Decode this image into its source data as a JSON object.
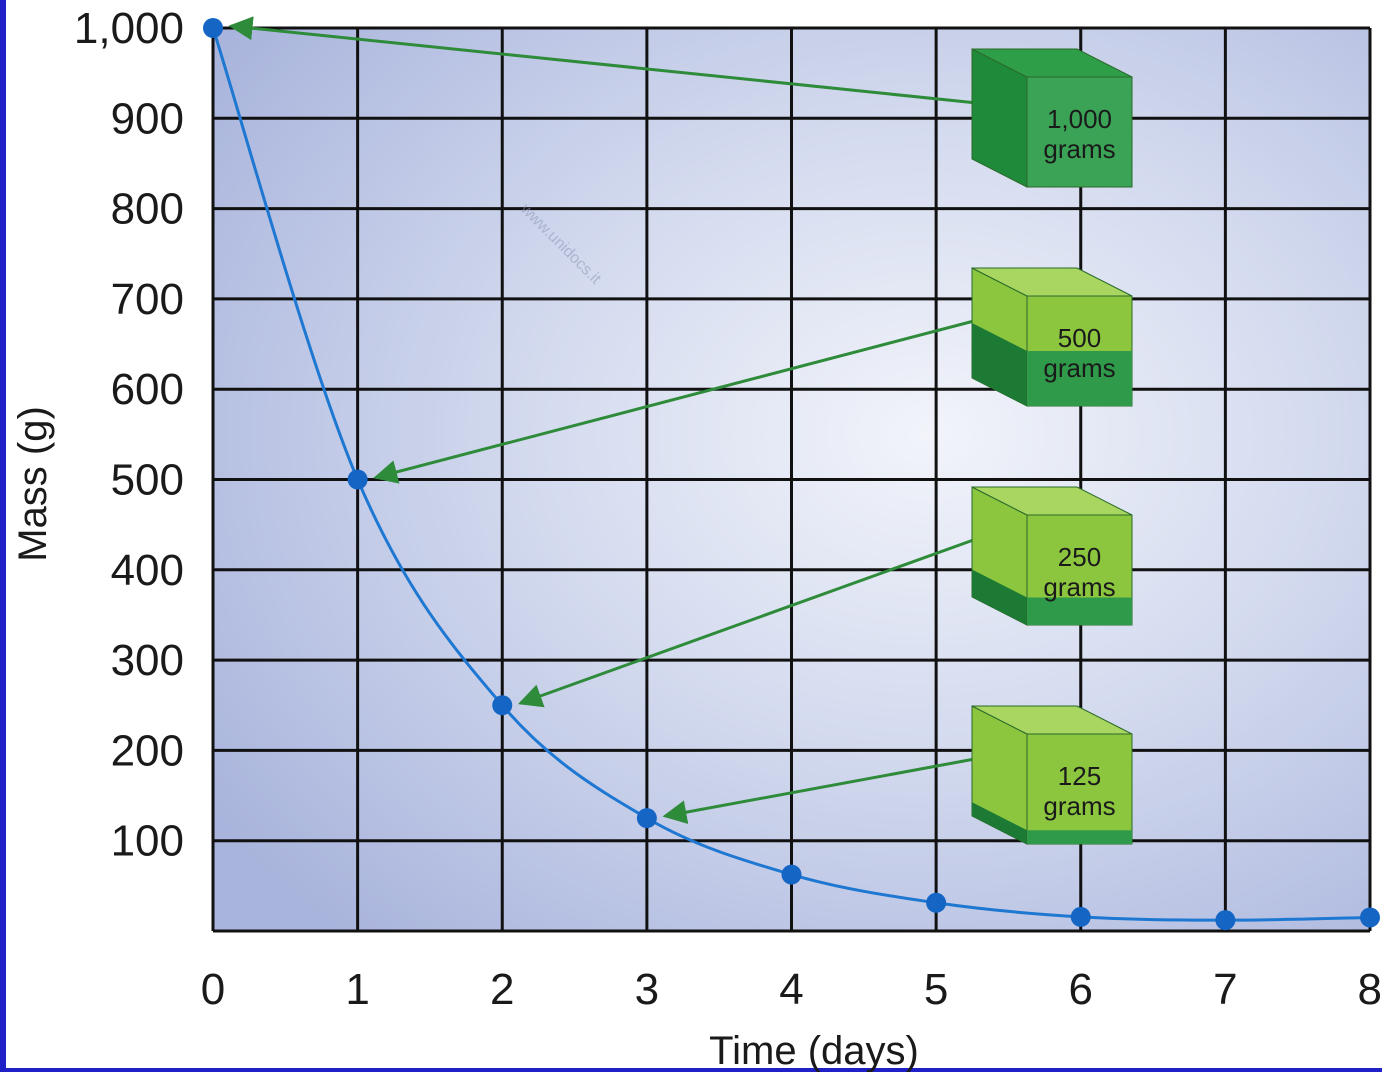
{
  "chart_data": {
    "type": "line",
    "xlabel": "Time (days)",
    "ylabel": "Mass (g)",
    "xlim": [
      0,
      8
    ],
    "ylim": [
      0,
      1000
    ],
    "x_ticks": [
      "0",
      "1",
      "2",
      "3",
      "4",
      "5",
      "6",
      "7",
      "8"
    ],
    "y_ticks": [
      "100",
      "200",
      "300",
      "400",
      "500",
      "600",
      "700",
      "800",
      "900",
      "1,000"
    ],
    "grid": true,
    "series": [
      {
        "x": [
          0,
          1,
          2,
          3,
          4,
          5,
          6,
          7,
          8
        ],
        "y": [
          1000,
          500,
          250,
          125,
          62.5,
          31.25,
          15.6,
          12,
          15
        ]
      }
    ],
    "annotations": [
      {
        "value": "1,000",
        "unit": "grams",
        "target_x": 0,
        "target_y": 1000,
        "fill_fraction": 1.0
      },
      {
        "value": "500",
        "unit": "grams",
        "target_x": 1,
        "target_y": 500,
        "fill_fraction": 0.5
      },
      {
        "value": "250",
        "unit": "grams",
        "target_x": 2,
        "target_y": 250,
        "fill_fraction": 0.25
      },
      {
        "value": "125",
        "unit": "grams",
        "target_x": 3,
        "target_y": 125,
        "fill_fraction": 0.125
      }
    ],
    "colors": {
      "line": "#1e78d2",
      "point": "#1566c4",
      "arrow": "#2e8b3a",
      "cube_dark": "#1f8a3a",
      "cube_light": "#8cc63f",
      "grid": "#111111",
      "frame": "#2020c8"
    },
    "watermark": "www.unidocs.it"
  }
}
